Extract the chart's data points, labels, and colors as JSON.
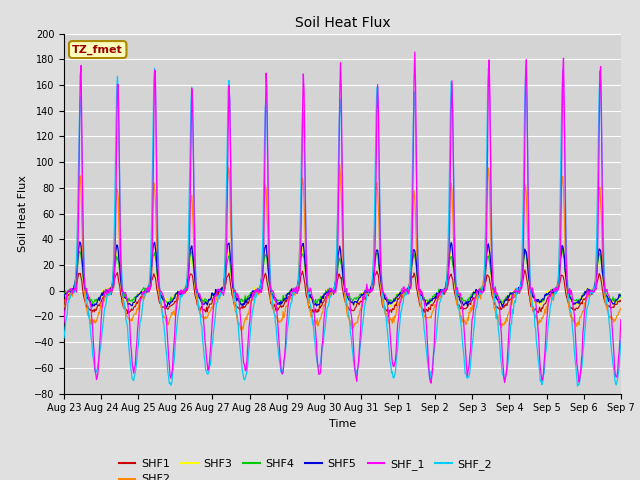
{
  "title": "Soil Heat Flux",
  "xlabel": "Time",
  "ylabel": "Soil Heat Flux",
  "ylim": [
    -80,
    200
  ],
  "yticks": [
    -80,
    -60,
    -40,
    -20,
    0,
    20,
    40,
    60,
    80,
    100,
    120,
    140,
    160,
    180,
    200
  ],
  "colors": {
    "SHF1": "#cc0000",
    "SHF2": "#ff8800",
    "SHF3": "#ffff00",
    "SHF4": "#00cc00",
    "SHF5": "#0000dd",
    "SHF_1": "#ff00ff",
    "SHF_2": "#00ccff"
  },
  "legend_label": "TZ_fmet",
  "legend_box_facecolor": "#ffffbb",
  "legend_box_edgecolor": "#aa8800",
  "background_color": "#e0e0e0",
  "plot_bg_color": "#d4d4d4",
  "n_days": 15,
  "date_labels": [
    "Aug 23",
    "Aug 24",
    "Aug 25",
    "Aug 26",
    "Aug 27",
    "Aug 28",
    "Aug 29",
    "Aug 30",
    "Aug 31",
    "Sep 1",
    "Sep 2",
    "Sep 3",
    "Sep 4",
    "Sep 5",
    "Sep 6",
    "Sep 7"
  ]
}
